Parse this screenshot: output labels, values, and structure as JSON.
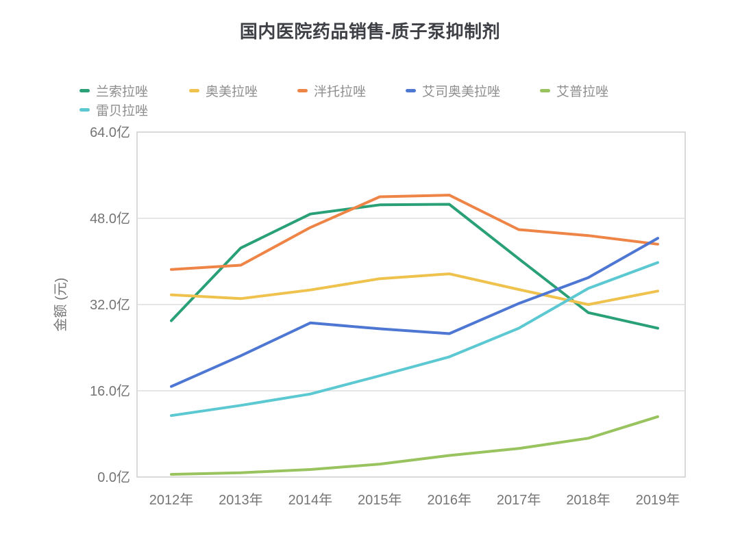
{
  "title": "国内医院药品销售-质子泵抑制剂",
  "legend": {
    "items": [
      {
        "label": "兰索拉唑",
        "color": "#2aa077"
      },
      {
        "label": "奥美拉唑",
        "color": "#efc14d"
      },
      {
        "label": "泮托拉唑",
        "color": "#ee8446"
      },
      {
        "label": "艾司奥美拉唑",
        "color": "#4d77d2"
      },
      {
        "label": "艾普拉唑",
        "color": "#98c35e"
      },
      {
        "label": "雷贝拉唑",
        "color": "#5cc8d2"
      }
    ]
  },
  "y_axis": {
    "title": "金额 (元)",
    "tick_labels": [
      "0.0亿",
      "16.0亿",
      "32.0亿",
      "48.0亿",
      "64.0亿"
    ]
  },
  "x_axis": {
    "tick_labels": [
      "2012年",
      "2013年",
      "2014年",
      "2015年",
      "2016年",
      "2017年",
      "2018年",
      "2019年"
    ]
  },
  "chart_data": {
    "type": "line",
    "title": "国内医院药品销售-质子泵抑制剂",
    "categories": [
      "2012年",
      "2013年",
      "2014年",
      "2015年",
      "2016年",
      "2017年",
      "2018年",
      "2019年"
    ],
    "series": [
      {
        "name": "兰索拉唑",
        "color": "#2aa077",
        "values": [
          29.0,
          42.5,
          48.8,
          50.5,
          50.6,
          40.5,
          30.5,
          27.6
        ]
      },
      {
        "name": "奥美拉唑",
        "color": "#efc14d",
        "values": [
          33.8,
          33.1,
          34.7,
          36.8,
          37.7,
          34.8,
          32.0,
          34.5
        ]
      },
      {
        "name": "泮托拉唑",
        "color": "#ee8446",
        "values": [
          38.5,
          39.3,
          46.3,
          52.0,
          52.3,
          45.9,
          44.8,
          43.2
        ]
      },
      {
        "name": "艾司奥美拉唑",
        "color": "#4d77d2",
        "values": [
          16.8,
          22.5,
          28.6,
          27.5,
          26.6,
          32.2,
          37.0,
          44.3
        ]
      },
      {
        "name": "艾普拉唑",
        "color": "#98c35e",
        "values": [
          0.5,
          0.8,
          1.4,
          2.4,
          4.0,
          5.3,
          7.2,
          11.2
        ]
      },
      {
        "name": "雷贝拉唑",
        "color": "#5cc8d2",
        "values": [
          11.4,
          13.3,
          15.4,
          18.8,
          22.3,
          27.6,
          35.0,
          39.8
        ]
      }
    ],
    "xlabel": "",
    "ylabel": "金额 (元)",
    "ylim": [
      0,
      64
    ],
    "yticks": [
      0,
      16,
      32,
      48,
      64
    ],
    "ytick_labels": [
      "0.0亿",
      "16.0亿",
      "32.0亿",
      "48.0亿",
      "64.0亿"
    ],
    "grid": true,
    "legend_position": "top-left"
  },
  "colors": {
    "background": "#ffffff",
    "grid": "#dddddd",
    "plot_border": "#c9c9c9",
    "title_text": "#3f4046",
    "axis_text": "#757575",
    "legend_text": "#8e8e8e"
  }
}
